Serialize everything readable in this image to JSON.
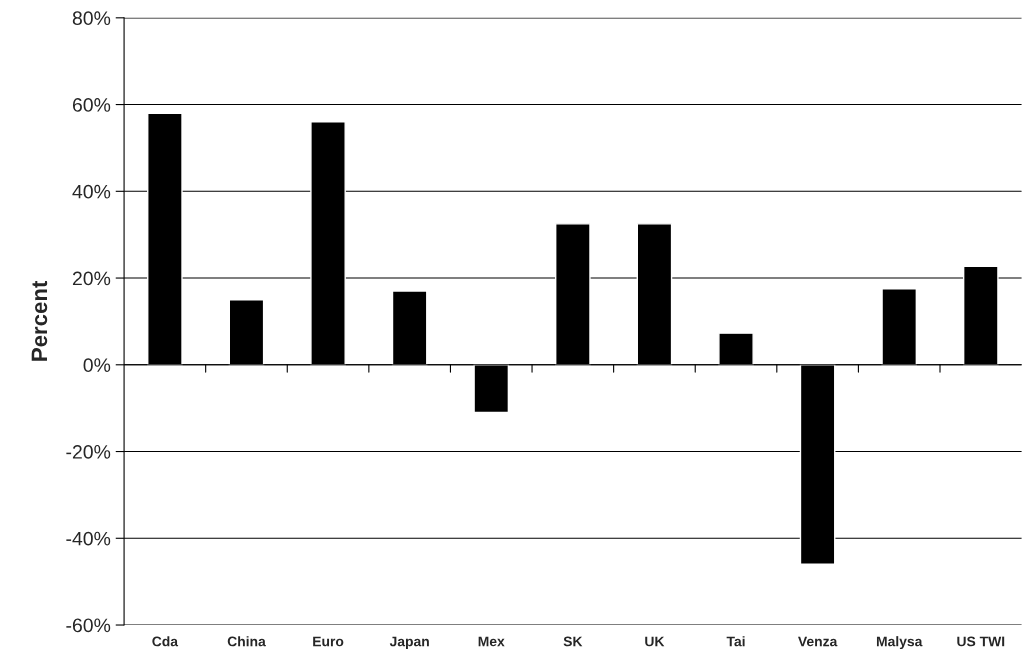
{
  "chart_data": {
    "type": "bar",
    "ylabel": "Percent",
    "categories": [
      "Cda",
      "China",
      "Euro",
      "Japan",
      "Mex",
      "SK",
      "UK",
      "Tai",
      "Venza",
      "Malysa",
      "US TWI"
    ],
    "values": [
      58,
      15,
      56,
      17,
      -11,
      32.5,
      32.5,
      7.3,
      -46,
      17.5,
      22.7
    ],
    "color": "#000000",
    "ylim": [
      -60,
      80
    ],
    "yticks": [
      {
        "value": -60,
        "label": "-60%"
      },
      {
        "value": -40,
        "label": "-40%"
      },
      {
        "value": -20,
        "label": "-20%"
      },
      {
        "value": 0,
        "label": "0%"
      },
      {
        "value": 20,
        "label": "20%"
      },
      {
        "value": 40,
        "label": "40%"
      },
      {
        "value": 60,
        "label": "60%"
      },
      {
        "value": 80,
        "label": "80%"
      }
    ],
    "grid": "y"
  }
}
